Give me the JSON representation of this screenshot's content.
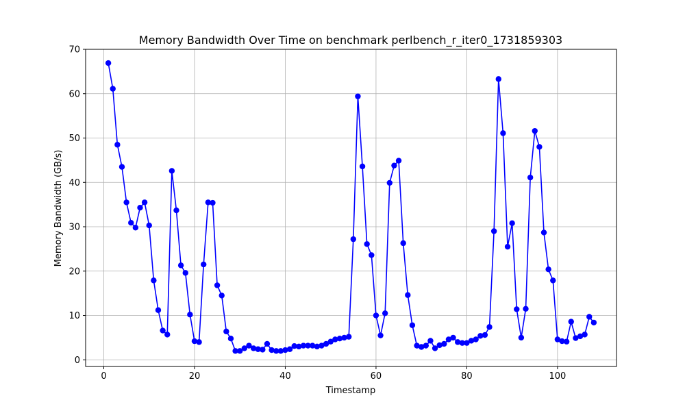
{
  "chart_data": {
    "type": "line",
    "title": "Memory Bandwidth Over Time on benchmark perlbench_r_iter0_1731859303",
    "xlabel": "Timestamp",
    "ylabel": "Memory Bandwidth (GB/s)",
    "xlim": [
      -4,
      113
    ],
    "ylim": [
      -1.5,
      70
    ],
    "xticks": [
      0,
      20,
      40,
      60,
      80,
      100
    ],
    "yticks": [
      0,
      10,
      20,
      30,
      40,
      50,
      60,
      70
    ],
    "grid": true,
    "series": [
      {
        "color": "#0000ff",
        "marker": "circle",
        "x": [
          1,
          2,
          3,
          4,
          5,
          6,
          7,
          8,
          9,
          10,
          11,
          12,
          13,
          14,
          15,
          16,
          17,
          18,
          19,
          20,
          21,
          22,
          23,
          24,
          25,
          26,
          27,
          28,
          29,
          30,
          31,
          32,
          33,
          34,
          35,
          36,
          37,
          38,
          39,
          40,
          41,
          42,
          43,
          44,
          45,
          46,
          47,
          48,
          49,
          50,
          51,
          52,
          53,
          54,
          55,
          56,
          57,
          58,
          59,
          60,
          61,
          62,
          63,
          64,
          65,
          66,
          67,
          68,
          69,
          70,
          71,
          72,
          73,
          74,
          75,
          76,
          77,
          78,
          79,
          80,
          81,
          82,
          83,
          84,
          85,
          86,
          87,
          88,
          89,
          90,
          91,
          92,
          93,
          94,
          95,
          96,
          97,
          98,
          99,
          100,
          101,
          102,
          103,
          104,
          105,
          106,
          107,
          108
        ],
        "y": [
          66.9,
          61.1,
          48.5,
          43.5,
          35.5,
          30.9,
          29.8,
          34.3,
          35.5,
          30.3,
          17.9,
          11.2,
          6.6,
          5.7,
          42.6,
          33.7,
          21.3,
          19.6,
          10.2,
          4.2,
          4.0,
          21.5,
          35.5,
          35.4,
          16.8,
          14.5,
          6.4,
          4.8,
          2.0,
          2.0,
          2.6,
          3.2,
          2.6,
          2.4,
          2.3,
          3.6,
          2.2,
          2.0,
          2.0,
          2.2,
          2.4,
          3.1,
          3.0,
          3.2,
          3.2,
          3.2,
          3.0,
          3.2,
          3.6,
          4.1,
          4.6,
          4.8,
          5.0,
          5.2,
          27.2,
          59.4,
          43.6,
          26.1,
          23.6,
          10.0,
          5.5,
          10.5,
          39.9,
          43.8,
          44.9,
          26.3,
          14.6,
          7.8,
          3.2,
          2.9,
          3.2,
          4.3,
          2.6,
          3.3,
          3.6,
          4.6,
          5.0,
          4.0,
          3.8,
          3.8,
          4.3,
          4.6,
          5.4,
          5.6,
          7.4,
          29.0,
          63.3,
          51.1,
          25.5,
          30.8,
          11.4,
          5.0,
          11.5,
          41.1,
          51.6,
          48.0,
          28.7,
          20.4,
          17.9,
          4.6,
          4.2,
          4.1,
          8.6,
          4.9,
          5.3,
          5.7,
          9.7,
          8.4
        ]
      }
    ]
  }
}
